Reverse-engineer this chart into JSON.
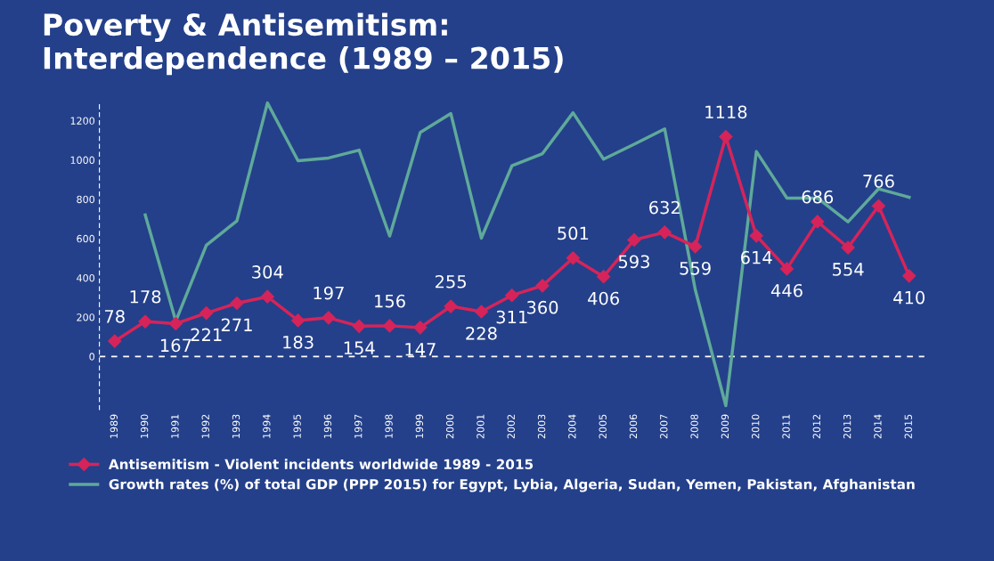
{
  "chart_data": {
    "type": "line",
    "title": "Poverty & Antisemitism:\nInterdependence (1989 – 2015)",
    "categories": [
      "1989",
      "1990",
      "1991",
      "1992",
      "1993",
      "1994",
      "1995",
      "1996",
      "1997",
      "1998",
      "1999",
      "2000",
      "2001",
      "2002",
      "2003",
      "2004",
      "2005",
      "2006",
      "2007",
      "2008",
      "2009",
      "2010",
      "2011",
      "2012",
      "2013",
      "2014",
      "2015"
    ],
    "series": [
      {
        "name": "Antisemitism - Violent incidents worldwide 1989 - 2015",
        "color": "#d6245a",
        "marker": "diamond",
        "data_labels": true,
        "values": [
          78,
          178,
          167,
          221,
          271,
          304,
          183,
          197,
          154,
          156,
          147,
          255,
          228,
          311,
          360,
          501,
          406,
          593,
          632,
          559,
          1118,
          614,
          446,
          686,
          554,
          766,
          410
        ]
      },
      {
        "name": "Growth rates (%) of total GDP (PPP 2015) for Egypt, Lybia, Algeria, Sudan, Yemen, Pakistan, Afghanistan",
        "color": "#5fa99a",
        "marker": "none",
        "values": [
          null,
          720,
          180,
          566,
          690,
          1290,
          996,
          1010,
          1050,
          613,
          1140,
          1236,
          602,
          970,
          1032,
          1240,
          1004,
          1080,
          1158,
          340,
          -250,
          1043,
          806,
          806,
          685,
          853,
          810
        ]
      }
    ],
    "ylim": [
      -270,
      1300
    ],
    "yticks": [
      0,
      200,
      400,
      600,
      800,
      1000,
      1200
    ],
    "ref_lines": [
      {
        "axis": "y",
        "value": 0,
        "color": "#ffffff",
        "line_style": "dashed"
      }
    ],
    "grid": false,
    "legend": "bottom"
  }
}
